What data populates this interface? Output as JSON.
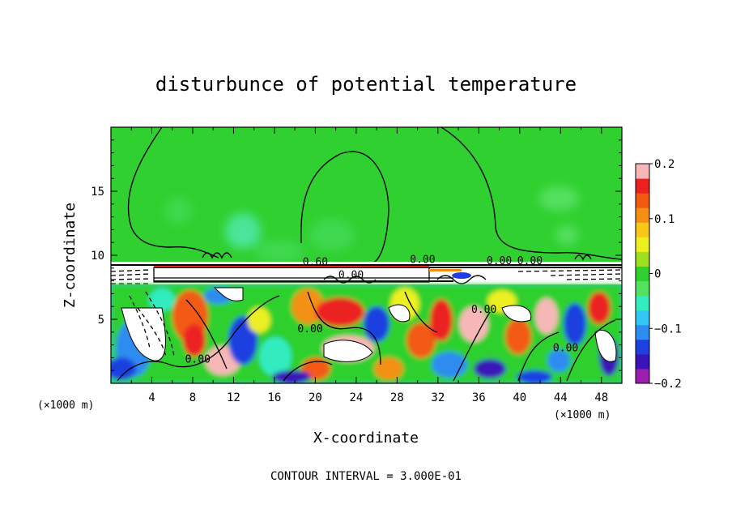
{
  "chart_data": {
    "type": "heatmap",
    "title": "disturbunce of potential temperature",
    "xlabel": "X-coordinate",
    "ylabel": "Z-coordinate",
    "x_unit_label": "(×1000 m)",
    "x_unit_label_right": "(×1000 m)",
    "xlim": [
      0,
      50
    ],
    "ylim": [
      0,
      20
    ],
    "x_ticks": [
      4,
      8,
      12,
      16,
      20,
      24,
      28,
      32,
      36,
      40,
      44,
      48
    ],
    "x_tick_labels": [
      "4",
      "8",
      "12",
      "16",
      "20",
      "24",
      "28",
      "32",
      "36",
      "40",
      "44",
      "48"
    ],
    "y_ticks": [
      5,
      10,
      15
    ],
    "y_tick_labels": [
      "5",
      "10",
      "15"
    ],
    "colorbar": {
      "range": [
        -0.2,
        0.2
      ],
      "tick_values": [
        0.2,
        0.1,
        0,
        -0.1,
        -0.2
      ],
      "tick_labels": [
        "0.2",
        "0.1",
        "0",
        "−0.1",
        "−0.2"
      ],
      "colors": [
        "#9c1fb2",
        "#3a14b8",
        "#1f3fe0",
        "#2f8cf0",
        "#33c8f2",
        "#33ecc0",
        "#55e060",
        "#2fd02f",
        "#9de020",
        "#ecf020",
        "#f8c818",
        "#f39014",
        "#f25a14",
        "#ec2020",
        "#f7b7b7"
      ]
    },
    "contour_labels": [
      {
        "x": 20,
        "z": 9.2,
        "text": "0.60"
      },
      {
        "x": 30.5,
        "z": 9.4,
        "text": "0.00"
      },
      {
        "x": 38,
        "z": 9.3,
        "text": "0.00"
      },
      {
        "x": 41,
        "z": 9.3,
        "text": "0.00"
      },
      {
        "x": 8.5,
        "z": 1.6,
        "text": "0.00"
      },
      {
        "x": 19.5,
        "z": 4.0,
        "text": "0.00"
      },
      {
        "x": 36.5,
        "z": 5.5,
        "text": "0.00"
      },
      {
        "x": 44.5,
        "z": 2.5,
        "text": "0.00"
      },
      {
        "x": 23.5,
        "z": 8.2,
        "text": "0.00"
      }
    ],
    "contour_interval_text": "CONTOUR INTERVAL = 3.000E-01",
    "regions": {
      "upper_band_z": [
        9.5,
        20
      ],
      "upper_band_value": 0.0,
      "lower_band_z": [
        0,
        8
      ],
      "lower_band_values_range": [
        -0.2,
        0.2
      ]
    }
  }
}
